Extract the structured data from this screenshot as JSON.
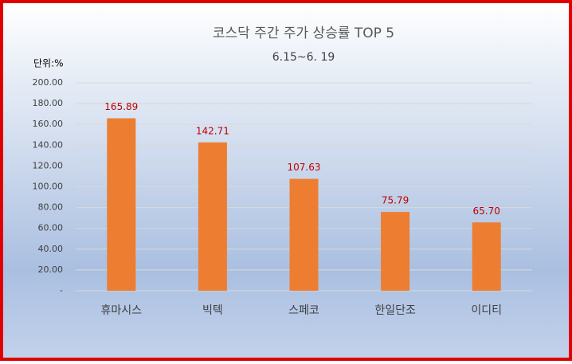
{
  "chart_data": {
    "type": "bar",
    "title": "코스닥 주간 주가 상승률 TOP 5",
    "subtitle": "6.15~6. 19",
    "y_unit_label": "단위:%",
    "categories": [
      "휴마시스",
      "빅텍",
      "스페코",
      "한일단조",
      "이디티"
    ],
    "values": [
      165.89,
      142.71,
      107.63,
      75.79,
      65.7
    ],
    "value_labels": [
      "165.89",
      "142.71",
      "107.63",
      "75.79",
      "65.70"
    ],
    "color": "#ed7d31",
    "value_label_color": "#c00000",
    "ylim": [
      0,
      200
    ],
    "yticks": [
      {
        "value": 0,
        "label": "-"
      },
      {
        "value": 20,
        "label": "20.00"
      },
      {
        "value": 40,
        "label": "40.00"
      },
      {
        "value": 60,
        "label": "60.00"
      },
      {
        "value": 80,
        "label": "80.00"
      },
      {
        "value": 100,
        "label": "100.00"
      },
      {
        "value": 120,
        "label": "120.00"
      },
      {
        "value": 140,
        "label": "140.00"
      },
      {
        "value": 160,
        "label": "160.00"
      },
      {
        "value": 180,
        "label": "180.00"
      },
      {
        "value": 200,
        "label": "200.00"
      }
    ],
    "grid": true
  }
}
